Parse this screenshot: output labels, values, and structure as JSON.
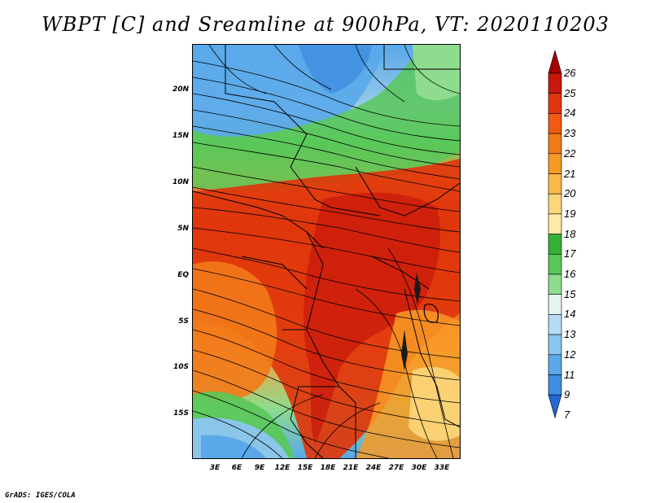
{
  "title": "WBPT [C] and Sreamline at 900hPa, VT: 2020110203",
  "footer": "GrADS: IGES/COLA",
  "latitude_labels": [
    "20N",
    "15N",
    "10N",
    "5N",
    "EQ",
    "5S",
    "10S",
    "15S"
  ],
  "longitude_labels": [
    "3E",
    "6E",
    "9E",
    "12E",
    "15E",
    "18E",
    "21E",
    "24E",
    "27E",
    "30E",
    "33E"
  ],
  "colorbar": {
    "labels": [
      "26",
      "25",
      "24",
      "23",
      "22",
      "21",
      "20",
      "19",
      "18",
      "17",
      "16",
      "15",
      "14",
      "13",
      "12",
      "11",
      "9",
      "7"
    ],
    "colors": [
      "#a50000",
      "#c8170c",
      "#e0360c",
      "#f05a12",
      "#f37a18",
      "#f89a26",
      "#fbb84a",
      "#fcd67a",
      "#fbeaa6",
      "#35b235",
      "#59c859",
      "#8fdc8f",
      "#e4f4ec",
      "#b6dcf4",
      "#8cc6f0",
      "#5aa8ea",
      "#3e8de0",
      "#2468d2"
    ]
  }
}
